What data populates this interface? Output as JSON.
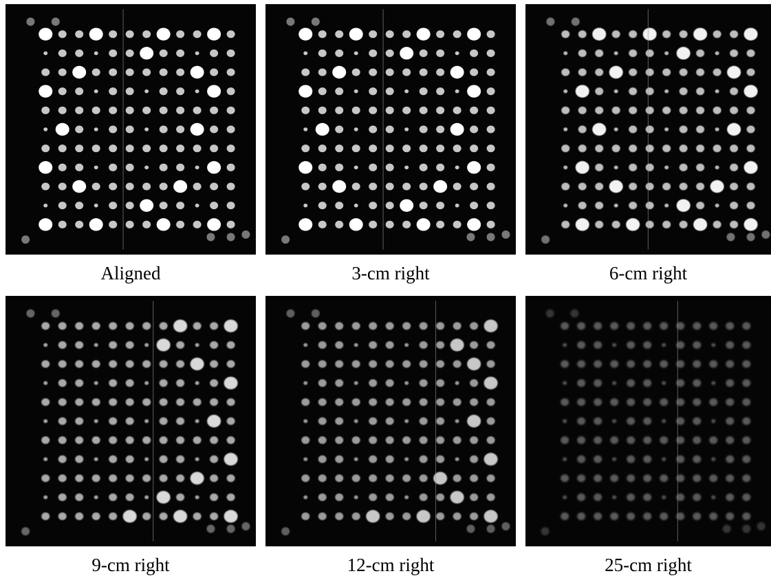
{
  "panels": [
    {
      "caption": "Aligned",
      "brightness": 1.0,
      "blur": 0.35,
      "line_offset": 0.47,
      "big_pattern": "a"
    },
    {
      "caption": "3-cm right",
      "brightness": 1.0,
      "blur": 0.35,
      "line_offset": 0.47,
      "big_pattern": "a"
    },
    {
      "caption": "6-cm right",
      "brightness": 0.95,
      "blur": 0.45,
      "line_offset": 0.49,
      "big_pattern": "b"
    },
    {
      "caption": "9-cm right",
      "brightness": 0.85,
      "blur": 0.7,
      "line_offset": 0.59,
      "big_pattern": "c"
    },
    {
      "caption": "12-cm right",
      "brightness": 0.78,
      "blur": 0.85,
      "line_offset": 0.68,
      "big_pattern": "d"
    },
    {
      "caption": "25-cm right",
      "brightness": 0.45,
      "blur": 1.4,
      "line_offset": 0.62,
      "big_pattern": "e"
    }
  ]
}
